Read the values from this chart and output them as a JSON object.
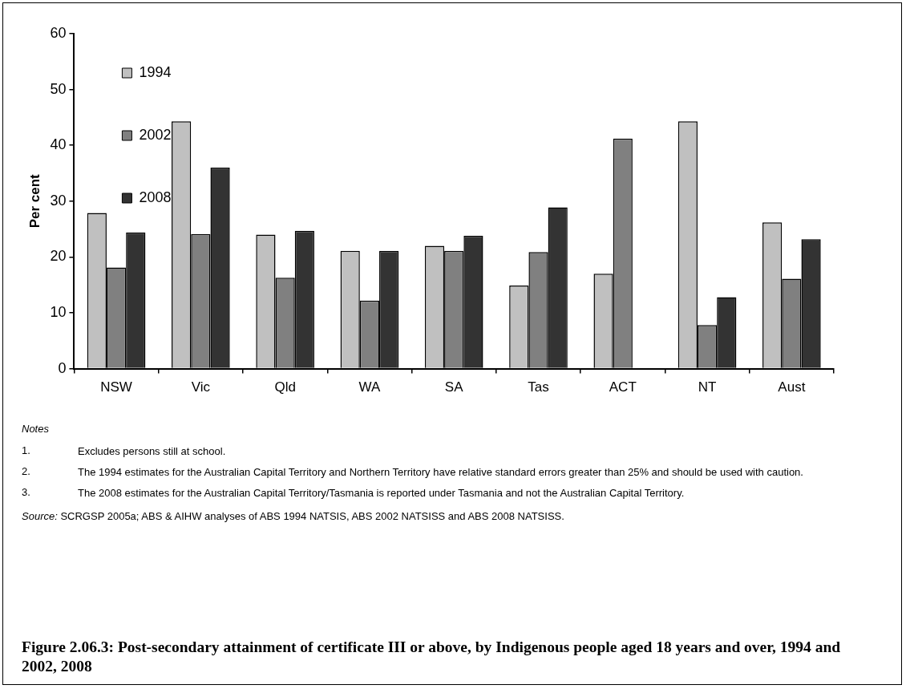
{
  "chart_data": {
    "type": "bar",
    "title": "Figure 2.06.3: Post-secondary attainment of certificate III or above, by Indigenous people aged 18 years and over, 1994 and 2002, 2008",
    "ylabel": "Per cent",
    "categories": [
      "NSW",
      "Vic",
      "Qld",
      "WA",
      "SA",
      "Tas",
      "ACT",
      "NT",
      "Aust"
    ],
    "series": [
      {
        "name": "1994",
        "color": "#c0c0c0",
        "values": [
          27.9,
          44.3,
          24.0,
          21.1,
          22.0,
          14.9,
          17.0,
          44.3,
          26.2
        ]
      },
      {
        "name": "2002",
        "color": "#808080",
        "values": [
          18.1,
          24.1,
          16.3,
          12.2,
          21.1,
          20.9,
          41.2,
          7.8,
          16.1
        ]
      },
      {
        "name": "2008",
        "color": "#333333",
        "values": [
          24.4,
          36.0,
          24.7,
          21.1,
          23.8,
          28.9,
          null,
          12.8,
          23.2
        ]
      }
    ],
    "ylim": [
      0,
      60
    ],
    "yticks": [
      0,
      10,
      20,
      30,
      40,
      50,
      60
    ],
    "legend": "top",
    "annotations": [
      "Notes",
      "1. Excludes persons still at school.",
      "2. The 1994 estimates for the Australian Capital Territory and Northern Territory have relative standard errors greater than 25% and should be used with caution.",
      "3. The 2008 estimates for the Australian Capital Territory/Tasmania is reported under Tasmania and not the Australian Capital Territory.",
      "Source: SCRGSP 2005a; ABS & AIHW analyses of ABS 1994 NATSIS, ABS 2002 NATSISS and ABS 2008 NATSISS."
    ]
  }
}
